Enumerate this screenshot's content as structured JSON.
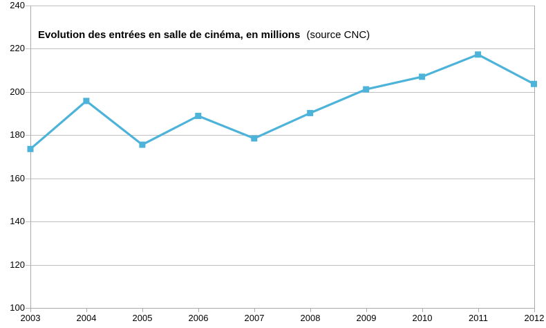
{
  "chart_data": {
    "type": "line",
    "title": "Evolution des entrées en salle de cinéma, en millions",
    "subtitle": "(source CNC)",
    "series_name": "Entrées en salle de cinéma (millions)",
    "x": [
      "2003",
      "2004",
      "2005",
      "2006",
      "2007",
      "2008",
      "2009",
      "2010",
      "2011",
      "2012"
    ],
    "values": [
      173.5,
      195.7,
      175.5,
      188.8,
      178.4,
      190.1,
      201.1,
      206.9,
      217.2,
      203.6
    ],
    "xlabel": "",
    "ylabel": "",
    "ylim": [
      100,
      240
    ],
    "y_ticks": [
      100,
      120,
      140,
      160,
      180,
      200,
      220,
      240
    ],
    "grid": "horizontal",
    "legend": "none",
    "marker": "square",
    "colors": {
      "line": "#4db3d9",
      "grid": "#bfbfbf",
      "axis": "#a9a9a9",
      "text": "#000000",
      "background": "#ffffff"
    }
  }
}
